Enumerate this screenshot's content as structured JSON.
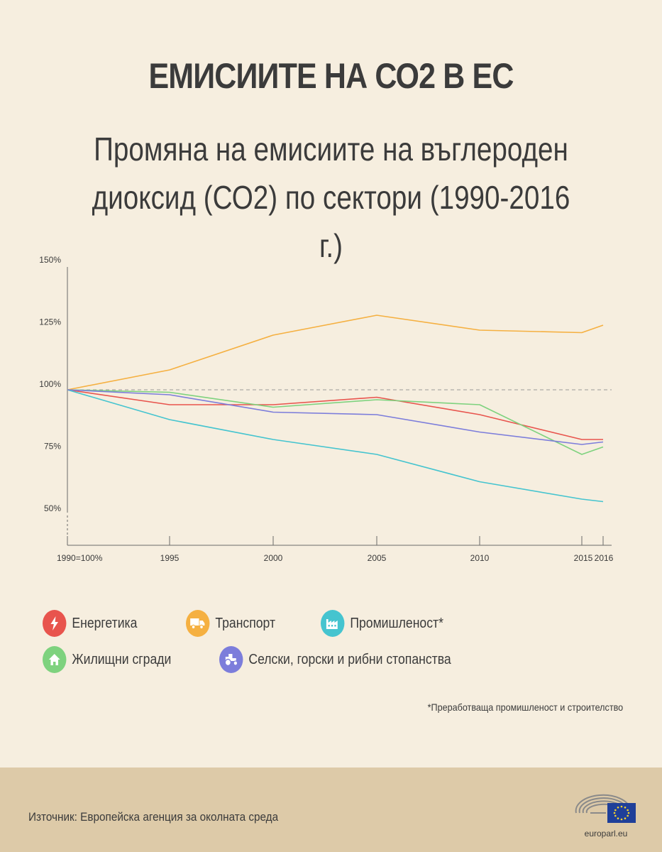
{
  "header": {
    "title": "ЕМИСИИТЕ НА СО2 В ЕС",
    "subtitle_line1": "Промяна на емисиите на въглероден",
    "subtitle_line2": "диоксид (СО2) по сектори (1990-2016 г.)"
  },
  "chart_data": {
    "type": "line",
    "x": [
      1990,
      1995,
      2000,
      2005,
      2010,
      2015,
      2016
    ],
    "x_tick_labels": [
      "1990=100%",
      "1995",
      "2000",
      "2005",
      "2010",
      "2015",
      "2016"
    ],
    "y_tick_values": [
      50,
      75,
      100,
      125,
      150
    ],
    "y_tick_labels": [
      "50%",
      "75%",
      "100%",
      "125%",
      "150%"
    ],
    "ylim": [
      50,
      150
    ],
    "reference_line": 100,
    "series": [
      {
        "name": "Енергетика",
        "color": "#e8544d",
        "values": [
          100,
          94,
          94,
          97,
          90,
          80,
          80
        ]
      },
      {
        "name": "Транспорт",
        "color": "#f5b041",
        "values": [
          100,
          108,
          122,
          130,
          124,
          123,
          126
        ]
      },
      {
        "name": "Промишленост*",
        "color": "#45c4cf",
        "values": [
          100,
          88,
          80,
          74,
          63,
          56,
          55
        ]
      },
      {
        "name": "Жилищни сгради",
        "color": "#7ed27e",
        "values": [
          100,
          99,
          93,
          96,
          94,
          74,
          77
        ]
      },
      {
        "name": "Селски, горски и рибни стопанства",
        "color": "#7c7ddb",
        "values": [
          100,
          98,
          91,
          90,
          83,
          78,
          79
        ]
      }
    ]
  },
  "legend": [
    {
      "label": "Енергетика",
      "icon": "lightning-icon",
      "color": "#e8544d"
    },
    {
      "label": "Транспорт",
      "icon": "truck-icon",
      "color": "#f5b041"
    },
    {
      "label": "Промишленост*",
      "icon": "factory-icon",
      "color": "#45c4cf"
    },
    {
      "label": "Жилищни сгради",
      "icon": "house-icon",
      "color": "#7ed27e"
    },
    {
      "label": "Селски, горски и рибни стопанства",
      "icon": "tractor-icon",
      "color": "#7c7ddb"
    }
  ],
  "footnote": "*Преработваща промишленост и строителство",
  "footer": {
    "source": "Източник: Европейска агенция за околната среда",
    "logo_text": "europarl.eu"
  }
}
